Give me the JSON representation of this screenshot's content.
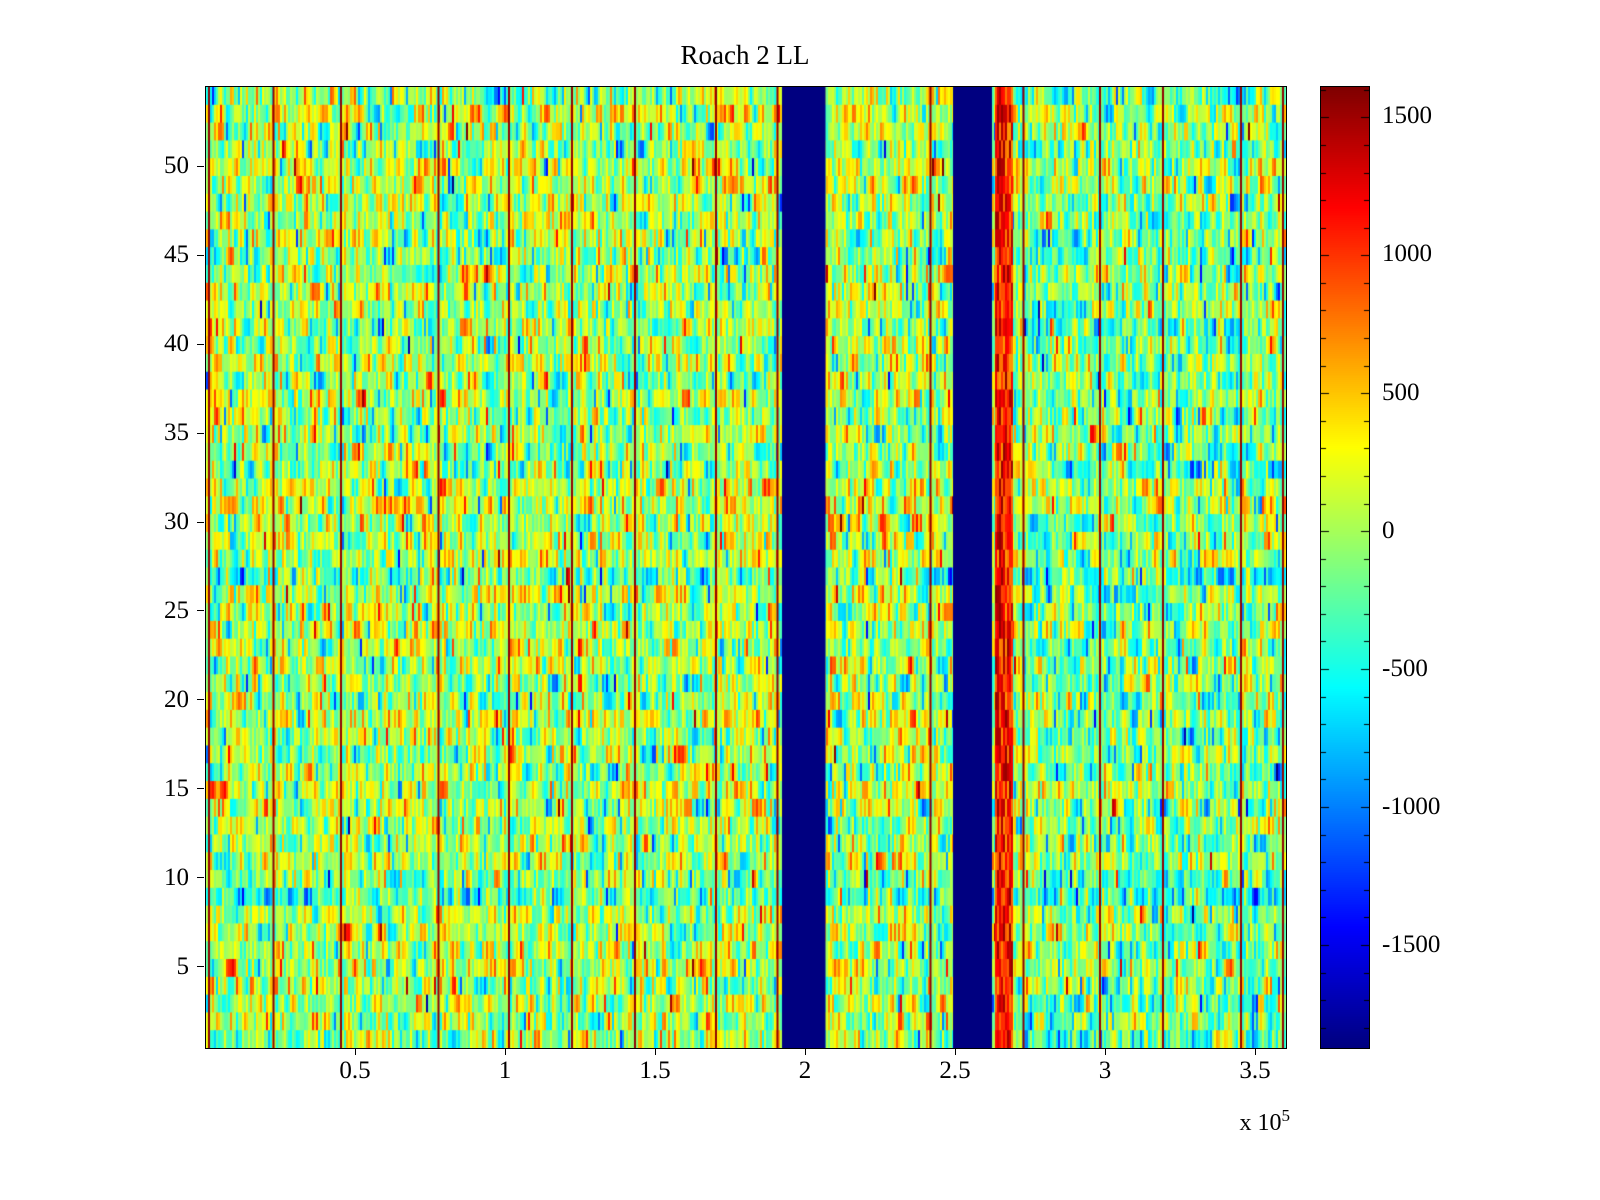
{
  "figure": {
    "background": "#ffffff",
    "x_exponent_prefix": "x 10",
    "x_exponent_sup": "5"
  },
  "chart_data": {
    "type": "heatmap",
    "title": "Roach 2 LL",
    "xlabel": "",
    "ylabel": "",
    "xlim": [
      0,
      360000
    ],
    "ylim": [
      0.5,
      54.5
    ],
    "rows": 54,
    "x_ticks": [
      50000,
      100000,
      150000,
      200000,
      250000,
      300000,
      350000
    ],
    "x_tick_labels": [
      "0.5",
      "1",
      "1.5",
      "2",
      "2.5",
      "3",
      "3.5"
    ],
    "x_axis_multiplier_label": "x 10^5",
    "y_ticks": [
      5,
      10,
      15,
      20,
      25,
      30,
      35,
      40,
      45,
      50
    ],
    "colormap": "jet",
    "clim": [
      -1870,
      1610
    ],
    "colorbar_tick_values": [
      1500,
      1000,
      500,
      0,
      -500,
      -1000,
      -1500
    ],
    "colorbar_tick_labels": [
      "1500",
      "1000",
      "500",
      "0",
      "-500",
      "-1000",
      "-1500"
    ],
    "grid": false,
    "legend": "none (colorbar on right)",
    "background_noise": {
      "mean": 0,
      "std": 380,
      "spike_probability": 0.04,
      "spike_magnitude": [
        350,
        1150
      ]
    },
    "features": {
      "blue_bands_x": [
        [
          192000,
          206500
        ],
        [
          249000,
          262000
        ]
      ],
      "blue_band_value": -1870,
      "red_lines_x": [
        1000,
        22500,
        45000,
        77500,
        101000,
        122000,
        143000,
        170000,
        190500,
        241500,
        272500,
        298000,
        319000,
        345000,
        359000
      ],
      "red_line_value": 1550,
      "red_stripe_x": [
        263000,
        268500
      ],
      "red_stripe_value_range": [
        650,
        1550
      ],
      "cyan_rows_y": [
        9,
        27
      ],
      "cyan_row_offset": -260,
      "right_region_x_start": 272000,
      "right_region_offset": -130
    },
    "render_seed": 1337
  }
}
